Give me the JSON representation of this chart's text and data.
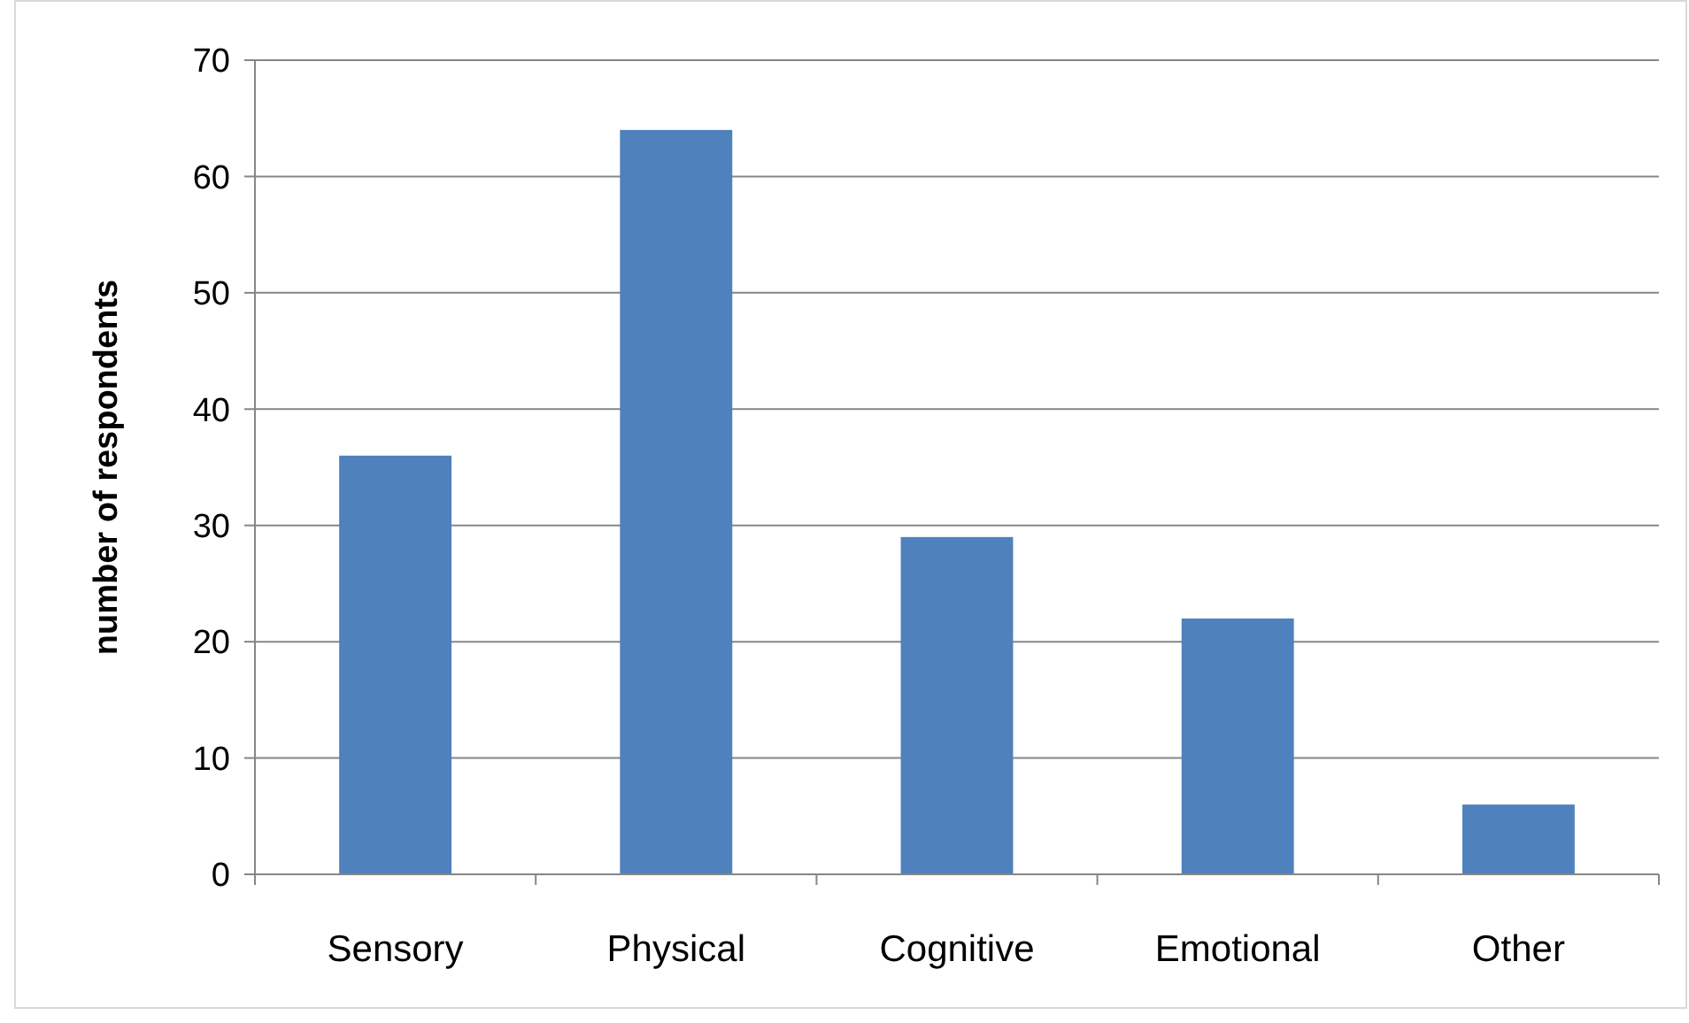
{
  "chart_data": {
    "type": "bar",
    "ylabel": "number of respondents",
    "categories": [
      "Sensory",
      "Physical",
      "Cognitive",
      "Emotional",
      "Other"
    ],
    "values": [
      36,
      64,
      29,
      22,
      6
    ],
    "color": "#4f81bd",
    "ylim": [
      0,
      70
    ],
    "yticks": [
      0,
      10,
      20,
      30,
      40,
      50,
      60,
      70
    ],
    "grid": "y"
  }
}
